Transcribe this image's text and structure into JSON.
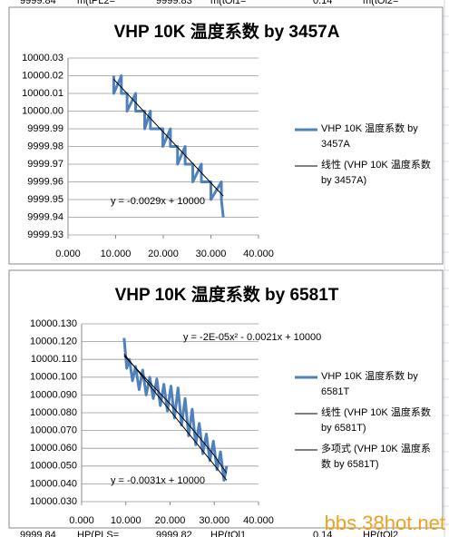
{
  "sheet": {
    "top": [
      "9999.84",
      "m(tPL2=",
      "9999.83",
      "m(tOl1=",
      "0.14",
      "m(tOl2="
    ],
    "bottom": [
      "9999.84",
      "HP(PLS=",
      "9999.82",
      "HP(tOl1",
      "0.14",
      "HP(tOl2"
    ]
  },
  "watermark": "bbs.38hot.net",
  "chart_data": [
    {
      "type": "line",
      "title": "VHP 10K 温度系数 by 3457A",
      "xlim": [
        0,
        40
      ],
      "xticks": [
        {
          "value": 0,
          "label": "0.000"
        },
        {
          "value": 10,
          "label": "10.000"
        },
        {
          "value": 20,
          "label": "20.000"
        },
        {
          "value": 30,
          "label": "30.000"
        },
        {
          "value": 40,
          "label": "40.000"
        }
      ],
      "ylim": [
        9999.93,
        10000.03
      ],
      "yticks": [
        {
          "value": 10000.03,
          "label": "10000.03"
        },
        {
          "value": 10000.02,
          "label": "10000.02"
        },
        {
          "value": 10000.01,
          "label": "10000.01"
        },
        {
          "value": 10000,
          "label": "10000.00"
        },
        9999.99,
        9999.98,
        9999.97,
        9999.96,
        9999.95,
        9999.94,
        9999.93
      ],
      "grid": true,
      "annotations": [
        "y = -0.0029x + 10000"
      ],
      "series": [
        {
          "name": "VHP 10K 温度系数 by 3457A",
          "color": "#4f81bd",
          "x": [
            9.6,
            9.6,
            11.2,
            11.2,
            12.4,
            12.4,
            14.2,
            14.2,
            16.1,
            16.1,
            17.3,
            17.3,
            19.9,
            19.9,
            21.5,
            21.5,
            23.0,
            23.0,
            24.6,
            24.6,
            26.2,
            26.2,
            28.0,
            28.0,
            30.0,
            30.0,
            32.2,
            32.2,
            32.6
          ],
          "values": [
            10000.02,
            10000.01,
            10000.02,
            10000.01,
            10000.01,
            10000.0,
            10000.01,
            10000.0,
            10000.0,
            9999.99,
            10000.0,
            9999.99,
            9999.99,
            9999.98,
            9999.99,
            9999.98,
            9999.98,
            9999.97,
            9999.98,
            9999.97,
            9999.97,
            9999.96,
            9999.97,
            9999.96,
            9999.96,
            9999.95,
            9999.96,
            9999.95,
            9999.94
          ]
        },
        {
          "name": "线性 (VHP 10K 温度系数 by 3457A)",
          "color": "#000000",
          "x": [
            9.6,
            32.6
          ],
          "values": [
            10000.018,
            9999.952
          ]
        }
      ]
    },
    {
      "type": "line",
      "title": "VHP 10K 温度系数 by 6581T",
      "xlim": [
        0,
        40
      ],
      "xticks": [
        {
          "value": 0,
          "label": "0.000"
        },
        {
          "value": 10,
          "label": "10.000"
        },
        {
          "value": 20,
          "label": "20.000"
        },
        {
          "value": 30,
          "label": "30.000"
        },
        {
          "value": 40,
          "label": "40.000"
        }
      ],
      "ylim": [
        10000.03,
        10000.13
      ],
      "yticks": [
        {
          "value": 10000.13,
          "label": "10000.130"
        },
        {
          "value": 10000.12,
          "label": "10000.120"
        },
        {
          "value": 10000.11,
          "label": "10000.110"
        },
        {
          "value": 10000.1,
          "label": "10000.100"
        },
        {
          "value": 10000.09,
          "label": "10000.090"
        },
        {
          "value": 10000.08,
          "label": "10000.080"
        },
        {
          "value": 10000.07,
          "label": "10000.070"
        },
        {
          "value": 10000.06,
          "label": "10000.060"
        },
        {
          "value": 10000.05,
          "label": "10000.050"
        },
        {
          "value": 10000.04,
          "label": "10000.040"
        },
        {
          "value": 10000.03,
          "label": "10000.030"
        }
      ],
      "grid": true,
      "annotations": [
        "y = -2E-05x² - 0.0021x + 10000",
        "y = -0.0031x + 10000"
      ],
      "series": [
        {
          "name": "VHP 10K 温度系数 by 6581T",
          "color": "#4f81bd",
          "x": [
            9.6,
            10.2,
            10.8,
            11.5,
            12.2,
            13.0,
            13.8,
            14.6,
            15.4,
            16.2,
            17.0,
            17.8,
            18.6,
            19.4,
            20.2,
            21.0,
            21.8,
            22.6,
            23.4,
            24.2,
            25.0,
            25.8,
            26.6,
            27.4,
            28.2,
            29.0,
            29.8,
            30.6,
            31.4,
            32.2,
            32.8
          ],
          "values": [
            10000.122,
            10000.105,
            10000.11,
            10000.098,
            10000.106,
            10000.093,
            10000.104,
            10000.09,
            10000.1,
            10000.088,
            10000.099,
            10000.084,
            10000.096,
            10000.081,
            10000.095,
            10000.077,
            10000.094,
            10000.073,
            10000.088,
            10000.067,
            10000.082,
            10000.062,
            10000.074,
            10000.057,
            10000.068,
            10000.053,
            10000.064,
            10000.048,
            10000.058,
            10000.042,
            10000.05
          ]
        },
        {
          "name": "线性 (VHP 10K 温度系数 by 6581T)",
          "color": "#000000",
          "x": [
            9.6,
            32.8
          ],
          "values": [
            10000.113,
            10000.042
          ]
        },
        {
          "name": "多项式 (VHP 10K 温度系数 by 6581T)",
          "color": "#000000",
          "x": [
            9.6,
            15,
            20,
            25,
            30,
            32.8
          ],
          "values": [
            10000.112,
            10000.098,
            10000.085,
            10000.071,
            10000.056,
            10000.046
          ]
        }
      ]
    }
  ]
}
